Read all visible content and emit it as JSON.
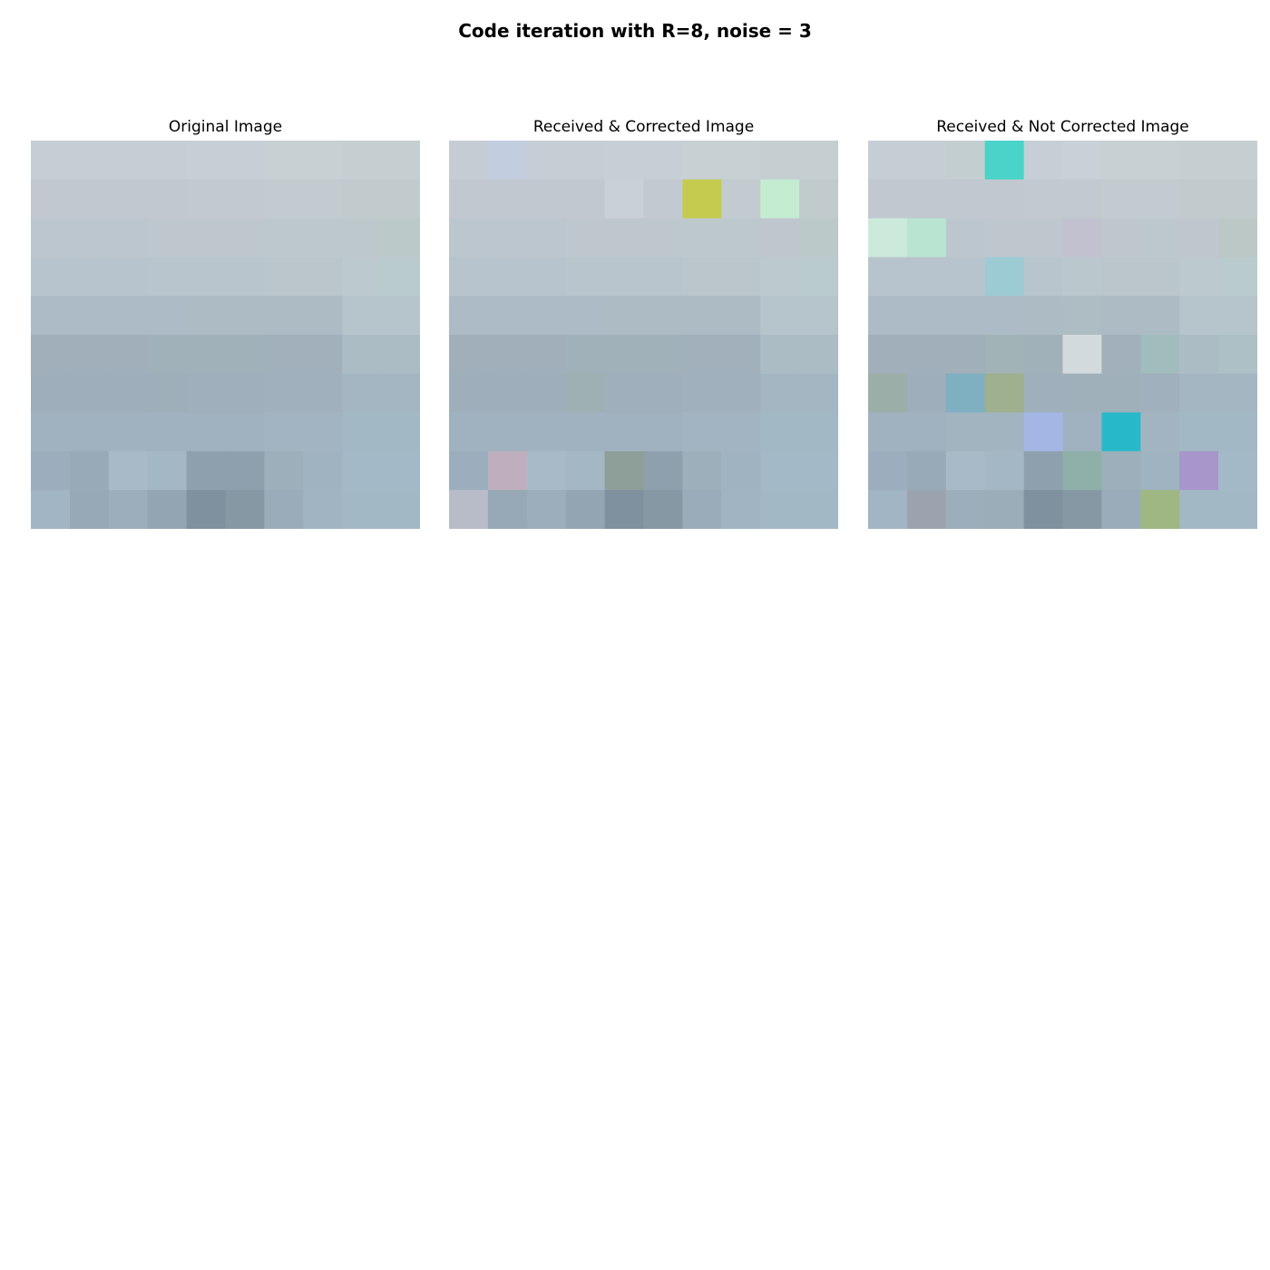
{
  "figure": {
    "title": "Code iteration with R=8, noise = 3"
  },
  "chart_data": [
    {
      "type": "heatmap",
      "title": "Original Image",
      "rows": 10,
      "cols": 10,
      "cells": [
        [
          "#c6ced5",
          "#c6ced5",
          "#c6ced5",
          "#c6ced5",
          "#c7cfd6",
          "#c7cfd6",
          "#c7d0d3",
          "#c7d0d3",
          "#c5cfd1",
          "#c5cfd1"
        ],
        [
          "#c1c8cf",
          "#c1c8cf",
          "#c1c8cf",
          "#c1c8cf",
          "#c2c9d0",
          "#c2c9d0",
          "#c2cbcf",
          "#c2cbcf",
          "#c1cbcd",
          "#c1cbcd"
        ],
        [
          "#bcc6ce",
          "#bcc6ce",
          "#bcc6ce",
          "#bdc7cd",
          "#bdc7cd",
          "#bdc7cd",
          "#bdc8cd",
          "#bdc8cd",
          "#bdc8cd",
          "#bcc9c9"
        ],
        [
          "#b8c4cd",
          "#b8c4cd",
          "#b8c4cd",
          "#b9c5cd",
          "#b9c5cd",
          "#b9c5cd",
          "#bac6cc",
          "#bac6cc",
          "#bcc9cf",
          "#bacbce"
        ],
        [
          "#adbbc6",
          "#adbbc6",
          "#adbbc6",
          "#adbbc6",
          "#adbbc5",
          "#adbbc5",
          "#adbbc5",
          "#adbbc5",
          "#b6c5cb",
          "#b6c5cb"
        ],
        [
          "#a0afba",
          "#a0afba",
          "#a0afba",
          "#a1b1b9",
          "#a1b1b9",
          "#a1b1b9",
          "#a2b0bb",
          "#a2b0bb",
          "#acbcc5",
          "#acbcc5"
        ],
        [
          "#9eaebb",
          "#9eaebb",
          "#9eaebb",
          "#9fafb9",
          "#9fafbb",
          "#9fafbb",
          "#a0b0bd",
          "#a0b0bd",
          "#a4b6c2",
          "#a4b6c2"
        ],
        [
          "#a0b2bf",
          "#a0b2bf",
          "#a0b2bf",
          "#a0b2bf",
          "#a0b2bf",
          "#a0b2bf",
          "#a2b4c1",
          "#a2b4c1",
          "#a3b8c5",
          "#a3b8c5"
        ],
        [
          "#9caebe",
          "#98a9b7",
          "#a8b9c7",
          "#a4b7c4",
          "#8ea0ad",
          "#8ea0ad",
          "#9eafbc",
          "#9fb3c1",
          "#a3b9c8",
          "#a3b9c8"
        ],
        [
          "#a2b5c4",
          "#97a9b7",
          "#9cadbb",
          "#93a5b2",
          "#7f909e",
          "#8798a5",
          "#9aacba",
          "#a0b4c2",
          "#a3b8c5",
          "#a3b8c5"
        ]
      ]
    },
    {
      "type": "heatmap",
      "title": "Received & Corrected Image",
      "rows": 10,
      "cols": 10,
      "cells": [
        [
          "#c6ccd4",
          "#c3cde0",
          "#c6ced5",
          "#c6ced5",
          "#c7cfd6",
          "#c7cfd6",
          "#c7d0d3",
          "#c7d0d3",
          "#c5cfd1",
          "#c5cfd1"
        ],
        [
          "#c1c8cf",
          "#c1c8cf",
          "#c1c8cf",
          "#c1c8cf",
          "#c9d0d7",
          "#c2c9d0",
          "#c4cb4e",
          "#c2cbcf",
          "#c3ecd1",
          "#c1cbcd"
        ],
        [
          "#bcc6ce",
          "#bcc6ce",
          "#bcc6ce",
          "#bdc7cd",
          "#bdc7cd",
          "#bdc7cd",
          "#bdc8cd",
          "#bdc8cd",
          "#c0c6ce",
          "#bcc9c9"
        ],
        [
          "#b8c4cd",
          "#b8c4cd",
          "#b8c4cd",
          "#b9c5cd",
          "#b9c5cd",
          "#b9c5cd",
          "#bac6cc",
          "#bac6cc",
          "#bcc9cf",
          "#bacbce"
        ],
        [
          "#adbbc6",
          "#adbbc6",
          "#adbbc6",
          "#adbbc6",
          "#adbbc5",
          "#adbbc5",
          "#adbbc5",
          "#adbbc5",
          "#b6c5cb",
          "#b6c5cb"
        ],
        [
          "#a0afba",
          "#a0afba",
          "#a0afba",
          "#a1b1b9",
          "#a1b1b9",
          "#a1b1b9",
          "#a2b0bb",
          "#a2b0bb",
          "#acbcc5",
          "#acbcc5"
        ],
        [
          "#9eaebb",
          "#9eaebb",
          "#9eaebb",
          "#9fb0b3",
          "#9fafbb",
          "#9fafbb",
          "#a0b0bd",
          "#a0b0bd",
          "#a4b6c2",
          "#a4b6c2"
        ],
        [
          "#a0b2bf",
          "#a0b2bf",
          "#a0b2bf",
          "#a0b2bf",
          "#a0b2bf",
          "#a0b2bf",
          "#a2b4c1",
          "#a2b4c1",
          "#a3b8c5",
          "#a3b8c5"
        ],
        [
          "#9caebe",
          "#bfafbe",
          "#a8b9c7",
          "#a4b7c4",
          "#8e9e98",
          "#8ea0ad",
          "#9eafbc",
          "#9fb3c1",
          "#a3b9c8",
          "#a3b9c8"
        ],
        [
          "#b8bcc9",
          "#97a9b7",
          "#9cadbb",
          "#93a5b2",
          "#7f909e",
          "#8798a5",
          "#9aacba",
          "#a0b4c2",
          "#a3b8c5",
          "#a3b8c5"
        ]
      ]
    },
    {
      "type": "heatmap",
      "title": "Received & Not Corrected Image",
      "rows": 10,
      "cols": 10,
      "cells": [
        [
          "#c6ced5",
          "#c6ced5",
          "#c3ced1",
          "#4ad3c8",
          "#c7cfd6",
          "#c9d0d8",
          "#c7d0d3",
          "#c7d0d3",
          "#c5cfd1",
          "#c5cfd1"
        ],
        [
          "#c1c8cf",
          "#c1c8cf",
          "#c1c8cf",
          "#c1c8cf",
          "#c2c9d0",
          "#c2c9d0",
          "#c2cbcf",
          "#c2cbcf",
          "#c1cbcd",
          "#c1cbcd"
        ],
        [
          "#cbeadc",
          "#b9e4d2",
          "#bcc6ce",
          "#bdc7cd",
          "#bdc7cd",
          "#c2c1d0",
          "#bdc7cd",
          "#bdc8cd",
          "#c0c6ce",
          "#bcc8c5"
        ],
        [
          "#b8c4cd",
          "#b8c4cd",
          "#b8c4cd",
          "#9ccbd3",
          "#b9c5cd",
          "#bac8ce",
          "#bac6cc",
          "#bac6cc",
          "#bcc9cf",
          "#bacbce"
        ],
        [
          "#adbbc6",
          "#adbbc6",
          "#adbbc6",
          "#adbbc6",
          "#adbbc5",
          "#adbdc3",
          "#adbbc5",
          "#adbbc5",
          "#b6c5cb",
          "#b6c5cb"
        ],
        [
          "#a0afba",
          "#a0afba",
          "#a0afba",
          "#a1b3b6",
          "#a1b1b9",
          "#d3dadd",
          "#a2b0bb",
          "#a1bcbc",
          "#acbcc5",
          "#acc0c5"
        ],
        [
          "#9caea8",
          "#9eaebb",
          "#7fb0c1",
          "#9eb08d",
          "#9fafbb",
          "#a0b0bb",
          "#a0b0bb",
          "#a0b0bd",
          "#a4b6c2",
          "#a4b6c2"
        ],
        [
          "#a0b2bf",
          "#a0b2bf",
          "#a2b4c0",
          "#a2b4c0",
          "#a4b6e3",
          "#a0b2bf",
          "#27b9c9",
          "#a2b4c1",
          "#a3b8c5",
          "#a3b8c5"
        ],
        [
          "#9caebe",
          "#98a9b7",
          "#a8b9c7",
          "#a4b7c4",
          "#8ea0ad",
          "#8eb0a9",
          "#9eafbc",
          "#9fb3c1",
          "#a796c9",
          "#a3b9c8"
        ],
        [
          "#a2b5c4",
          "#9ba4ae",
          "#9cadbb",
          "#9badb8",
          "#7f909e",
          "#8798a5",
          "#9aacba",
          "#9fb782",
          "#a3b8c5",
          "#a3b8c5"
        ]
      ]
    }
  ]
}
